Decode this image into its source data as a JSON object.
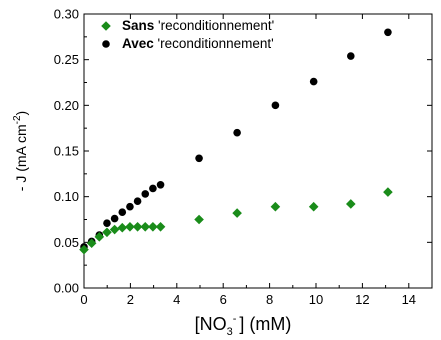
{
  "chart_data": {
    "type": "scatter",
    "xlabel": {
      "main": "[NO",
      "sub": "3",
      "sup": "-",
      "rest": "] (mM)"
    },
    "ylabel": {
      "main": "- J (mA cm",
      "sup": "-2",
      "rest": ")"
    },
    "xlim": [
      0,
      15
    ],
    "ylim": [
      0,
      0.3
    ],
    "xticks": [
      0,
      2,
      4,
      6,
      8,
      10,
      12,
      14
    ],
    "yticks": [
      0.0,
      0.05,
      0.1,
      0.15,
      0.2,
      0.25,
      0.3
    ],
    "xtick_labels": [
      "0",
      "2",
      "4",
      "6",
      "8",
      "10",
      "12",
      "14"
    ],
    "ytick_labels": [
      "0.00",
      "0.05",
      "0.10",
      "0.15",
      "0.20",
      "0.25",
      "0.30"
    ],
    "legend_position": "top-left",
    "grid": false,
    "series": [
      {
        "name": "'reconditionnement'",
        "name_bold": "Sans",
        "marker": "diamond",
        "color": "#1a8c1a",
        "x": [
          0.0,
          0.33,
          0.66,
          0.99,
          1.32,
          1.65,
          1.98,
          2.31,
          2.64,
          2.97,
          3.3,
          4.96,
          6.6,
          8.25,
          9.9,
          11.5,
          13.1
        ],
        "y": [
          0.042,
          0.049,
          0.056,
          0.061,
          0.064,
          0.066,
          0.067,
          0.067,
          0.067,
          0.067,
          0.067,
          0.075,
          0.082,
          0.089,
          0.089,
          0.092,
          0.105
        ]
      },
      {
        "name": "'reconditionnement'",
        "name_bold": "Avec",
        "marker": "circle",
        "color": "#000000",
        "x": [
          0.0,
          0.33,
          0.66,
          0.99,
          1.32,
          1.65,
          1.98,
          2.31,
          2.64,
          2.97,
          3.3,
          4.96,
          6.6,
          8.25,
          9.9,
          11.5,
          13.1
        ],
        "y": [
          0.045,
          0.051,
          0.058,
          0.071,
          0.076,
          0.083,
          0.089,
          0.095,
          0.103,
          0.109,
          0.113,
          0.142,
          0.17,
          0.2,
          0.226,
          0.254,
          0.28
        ]
      }
    ]
  }
}
